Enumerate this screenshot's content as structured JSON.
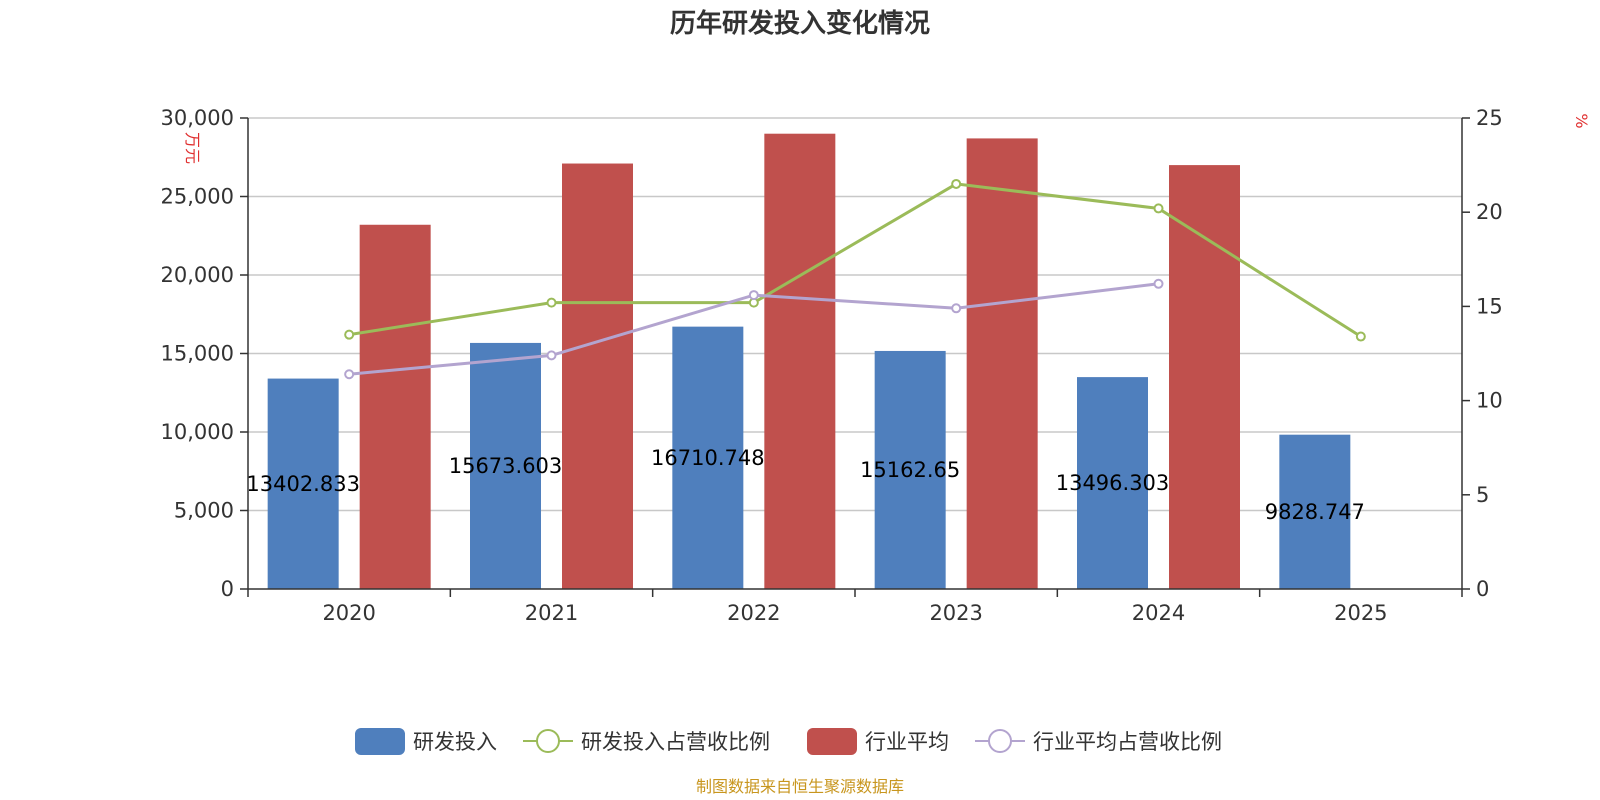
{
  "chart_data": {
    "type": "bar",
    "title": "历年研发投入变化情况",
    "categories": [
      "2020",
      "2021",
      "2022",
      "2023",
      "2024",
      "2025"
    ],
    "left_axis": {
      "unit": "万元",
      "ylim": [
        0,
        30000
      ],
      "ticks": [
        0,
        5000,
        10000,
        15000,
        20000,
        25000,
        30000
      ],
      "tick_labels": [
        "0",
        "5,000",
        "10,000",
        "15,000",
        "20,000",
        "25,000",
        "30,000"
      ]
    },
    "right_axis": {
      "unit": "%",
      "ylim": [
        0,
        25
      ],
      "ticks": [
        0,
        5,
        10,
        15,
        20,
        25
      ],
      "tick_labels": [
        "0",
        "5",
        "10",
        "15",
        "20",
        "25"
      ]
    },
    "series": [
      {
        "name": "研发投入",
        "kind": "bar",
        "axis": "left",
        "color": "#4f7fbd",
        "values": [
          13402.833,
          15673.603,
          16710.748,
          15162.65,
          13496.303,
          9828.747
        ],
        "labels": [
          "13402.833",
          "15673.603",
          "16710.748",
          "15162.65",
          "13496.303",
          "9828.747"
        ]
      },
      {
        "name": "研发投入占营收比例",
        "kind": "line",
        "axis": "right",
        "color": "#9bbb59",
        "values": [
          13.5,
          15.2,
          15.2,
          21.5,
          20.2,
          13.4
        ]
      },
      {
        "name": "行业平均",
        "kind": "bar",
        "axis": "left",
        "color": "#c0504d",
        "values": [
          23200,
          27100,
          29000,
          28700,
          27000,
          null
        ]
      },
      {
        "name": "行业平均占营收比例",
        "kind": "line",
        "axis": "right",
        "color": "#b3a4cf",
        "values": [
          11.4,
          12.4,
          15.6,
          14.9,
          16.2,
          null
        ]
      }
    ],
    "legend_position": "bottom",
    "grid": true
  },
  "source": "制图数据来自恒生聚源数据库"
}
